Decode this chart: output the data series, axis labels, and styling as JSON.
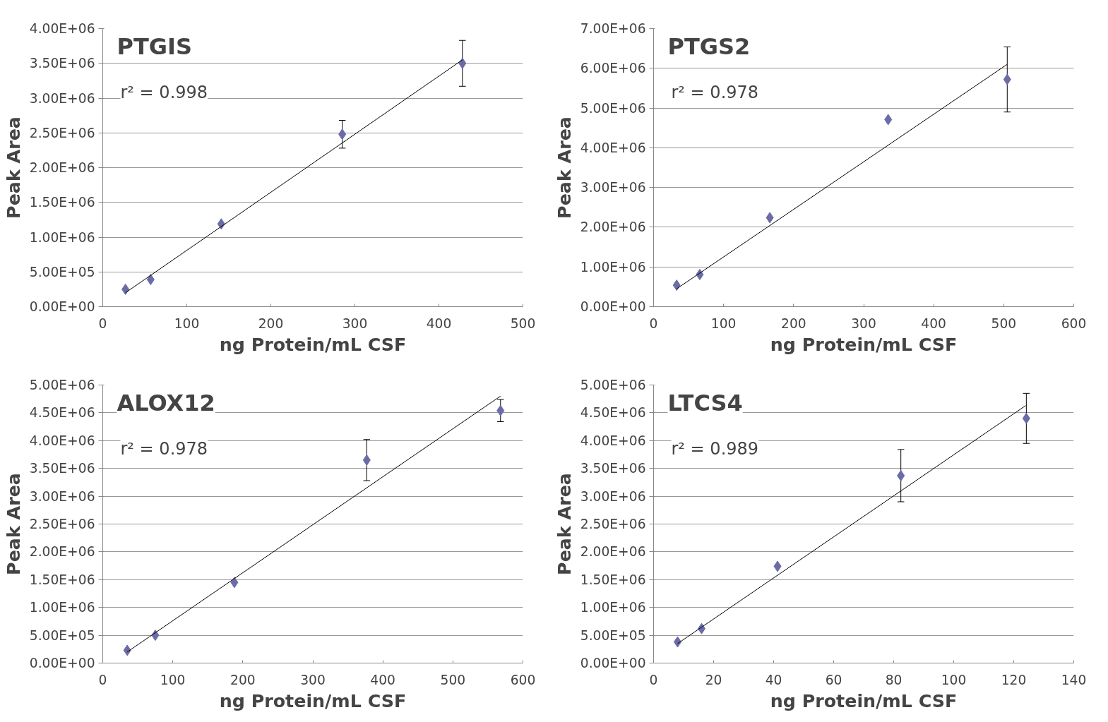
{
  "chart_data": [
    {
      "type": "scatter",
      "title": "PTGIS",
      "xlabel": "ng Protein/mL CSF",
      "ylabel": "Peak Area",
      "annotations": [
        "r² = 0.998"
      ],
      "xlim": [
        0,
        500
      ],
      "xticks": [
        0,
        100,
        200,
        300,
        400,
        500
      ],
      "ylim": [
        0,
        4000000
      ],
      "yticks": [
        {
          "value": 0,
          "label": "0.00E+00"
        },
        {
          "value": 500000,
          "label": "5.00E+05"
        },
        {
          "value": 1000000,
          "label": "1.00E+06"
        },
        {
          "value": 1500000,
          "label": "1.50E+06"
        },
        {
          "value": 2000000,
          "label": "2.00E+06"
        },
        {
          "value": 2500000,
          "label": "2.50E+06"
        },
        {
          "value": 3000000,
          "label": "3.00E+06"
        },
        {
          "value": 3500000,
          "label": "3.50E+06"
        },
        {
          "value": 4000000,
          "label": "4.00E+06"
        }
      ],
      "grid": "y",
      "marker": "diamond",
      "series": [
        {
          "color": "#6b6ba6",
          "x": [
            27,
            57,
            141,
            285,
            428
          ],
          "values": [
            250000,
            390000,
            1190000,
            2480000,
            3500000
          ],
          "errors": [
            null,
            null,
            null,
            200000,
            330000
          ]
        },
        {
          "type": "line",
          "color": "#000000",
          "marker": "none",
          "x": [
            27,
            428
          ],
          "values": [
            200000,
            3550000
          ]
        }
      ]
    },
    {
      "type": "scatter",
      "title": "PTGS2",
      "xlabel": "ng Protein/mL CSF",
      "ylabel": "Peak Area",
      "annotations": [
        "r² = 0.978"
      ],
      "xlim": [
        0,
        600
      ],
      "xticks": [
        0,
        100,
        200,
        300,
        400,
        500,
        600
      ],
      "ylim": [
        0,
        7000000
      ],
      "yticks": [
        {
          "value": 0,
          "label": "0.00E+00"
        },
        {
          "value": 1000000,
          "label": "1.00E+06"
        },
        {
          "value": 2000000,
          "label": "2.00E+06"
        },
        {
          "value": 3000000,
          "label": "3.00E+06"
        },
        {
          "value": 4000000,
          "label": "4.00E+06"
        },
        {
          "value": 5000000,
          "label": "5.00E+06"
        },
        {
          "value": 6000000,
          "label": "6.00E+06"
        },
        {
          "value": 7000000,
          "label": "7.00E+06"
        }
      ],
      "grid": "y",
      "marker": "diamond",
      "series": [
        {
          "color": "#6b6ba6",
          "x": [
            33,
            66,
            166,
            335,
            505
          ],
          "values": [
            540000,
            810000,
            2240000,
            4710000,
            5720000
          ],
          "errors": [
            null,
            null,
            null,
            null,
            820000
          ]
        },
        {
          "type": "line",
          "color": "#000000",
          "marker": "none",
          "x": [
            33,
            505
          ],
          "values": [
            450000,
            6100000
          ]
        }
      ]
    },
    {
      "type": "scatter",
      "title": "ALOX12",
      "xlabel": "ng Protein/mL CSF",
      "ylabel": "Peak Area",
      "annotations": [
        "r² = 0.978"
      ],
      "xlim": [
        0,
        600
      ],
      "xticks": [
        0,
        100,
        200,
        300,
        400,
        500,
        600
      ],
      "ylim": [
        0,
        5000000
      ],
      "yticks": [
        {
          "value": 0,
          "label": "0.00E+00"
        },
        {
          "value": 500000,
          "label": "5.00E+05"
        },
        {
          "value": 1000000,
          "label": "1.00E+06"
        },
        {
          "value": 1500000,
          "label": "1.50E+06"
        },
        {
          "value": 2000000,
          "label": "2.00E+06"
        },
        {
          "value": 2500000,
          "label": "2.50E+06"
        },
        {
          "value": 3000000,
          "label": "3.00E+06"
        },
        {
          "value": 3500000,
          "label": "3.50E+06"
        },
        {
          "value": 4000000,
          "label": "4.00E+06"
        },
        {
          "value": 4500000,
          "label": "4.50E+06"
        },
        {
          "value": 5000000,
          "label": "5.00E+06"
        }
      ],
      "grid": "y",
      "marker": "diamond",
      "series": [
        {
          "color": "#6b6ba6",
          "x": [
            35,
            75,
            188,
            377,
            568
          ],
          "values": [
            230000,
            500000,
            1450000,
            3650000,
            4540000
          ],
          "errors": [
            null,
            null,
            null,
            370000,
            200000
          ]
        },
        {
          "type": "line",
          "color": "#000000",
          "marker": "none",
          "x": [
            35,
            568
          ],
          "values": [
            200000,
            4800000
          ]
        }
      ]
    },
    {
      "type": "scatter",
      "title": "LTCS4",
      "xlabel": "ng Protein/mL CSF",
      "ylabel": "Peak Area",
      "annotations": [
        "r² = 0.989"
      ],
      "xlim": [
        0,
        140
      ],
      "xticks": [
        0,
        20,
        40,
        60,
        80,
        100,
        120,
        140
      ],
      "ylim": [
        0,
        5000000
      ],
      "yticks": [
        {
          "value": 0,
          "label": "0.00E+00"
        },
        {
          "value": 500000,
          "label": "5.00E+05"
        },
        {
          "value": 1000000,
          "label": "1.00E+06"
        },
        {
          "value": 1500000,
          "label": "1.50E+06"
        },
        {
          "value": 2000000,
          "label": "2.00E+06"
        },
        {
          "value": 2500000,
          "label": "2.50E+06"
        },
        {
          "value": 3000000,
          "label": "3.00E+06"
        },
        {
          "value": 3500000,
          "label": "3.50E+06"
        },
        {
          "value": 4000000,
          "label": "4.00E+06"
        },
        {
          "value": 4500000,
          "label": "4.50E+06"
        },
        {
          "value": 5000000,
          "label": "5.00E+06"
        }
      ],
      "grid": "y",
      "marker": "diamond",
      "series": [
        {
          "color": "#6b6ba6",
          "x": [
            8,
            16,
            41.3,
            82.4,
            124.2
          ],
          "values": [
            380000,
            620000,
            1740000,
            3370000,
            4400000
          ],
          "errors": [
            null,
            null,
            null,
            470000,
            450000
          ]
        },
        {
          "type": "line",
          "color": "#000000",
          "marker": "none",
          "x": [
            8,
            124
          ],
          "values": [
            350000,
            4630000
          ]
        }
      ]
    }
  ]
}
